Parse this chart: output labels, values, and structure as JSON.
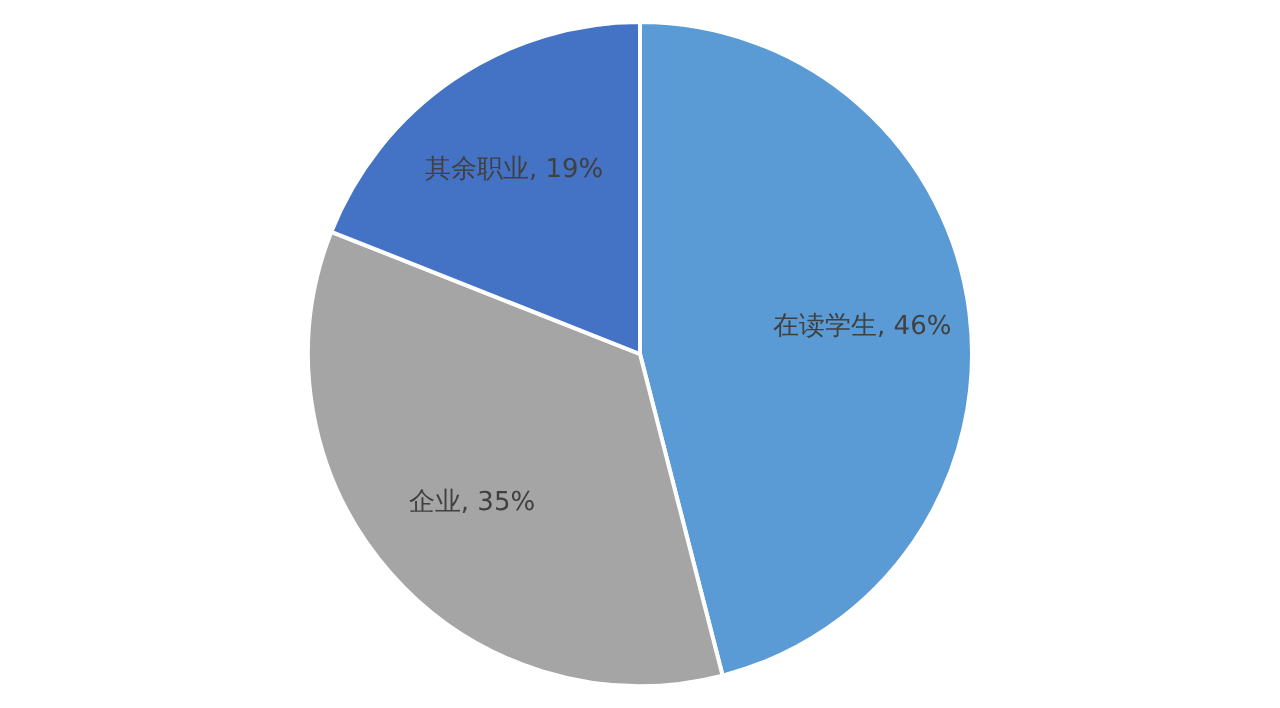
{
  "chart_data": {
    "type": "pie",
    "categories": [
      "在读学生",
      "企业",
      "其余职业"
    ],
    "values": [
      46,
      35,
      19
    ],
    "colors": [
      "#5b9bd5",
      "#a5a5a5",
      "#4472c4"
    ],
    "value_labels": [
      "46%",
      "35%",
      "19%"
    ]
  }
}
